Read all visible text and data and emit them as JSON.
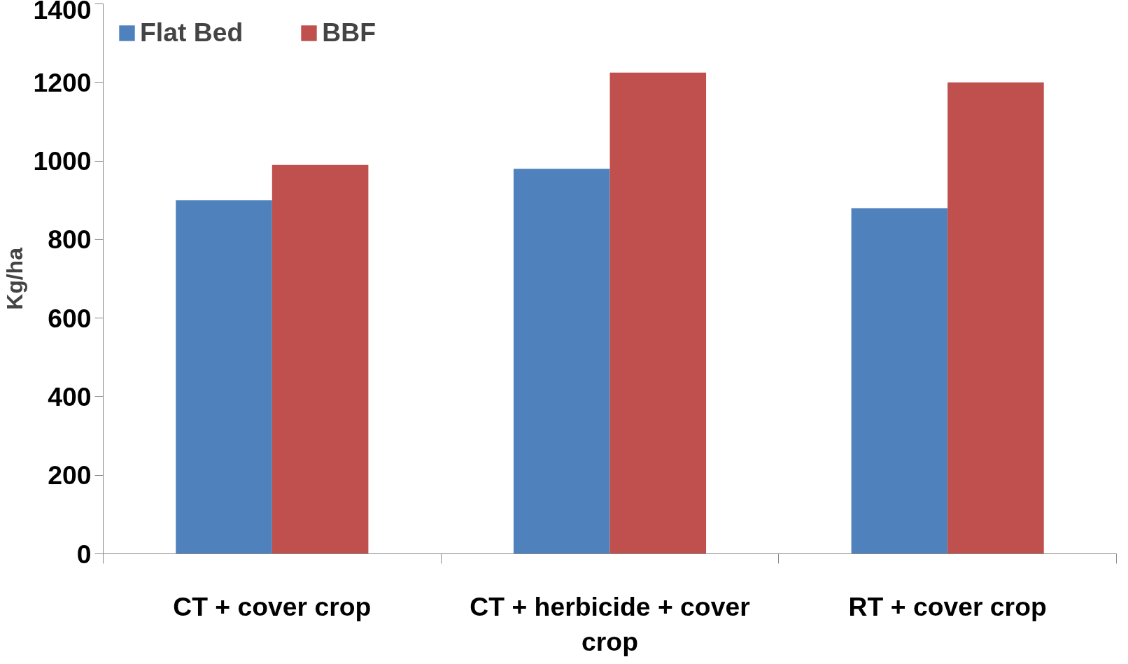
{
  "chart_data": {
    "type": "bar",
    "ylabel": "Kg/ha",
    "categories": [
      "CT + cover crop",
      "CT + herbicide + cover crop",
      "RT + cover crop"
    ],
    "series": [
      {
        "name": "Flat Bed",
        "color": "#4f81bd",
        "values": [
          900,
          980,
          880
        ]
      },
      {
        "name": "BBF",
        "color": "#c0504d",
        "values": [
          990,
          1225,
          1200
        ]
      }
    ],
    "ylim": [
      0,
      1400
    ],
    "yticks": [
      0,
      200,
      400,
      600,
      800,
      1000,
      1200,
      1400
    ],
    "legend": "top left",
    "grid": false
  }
}
